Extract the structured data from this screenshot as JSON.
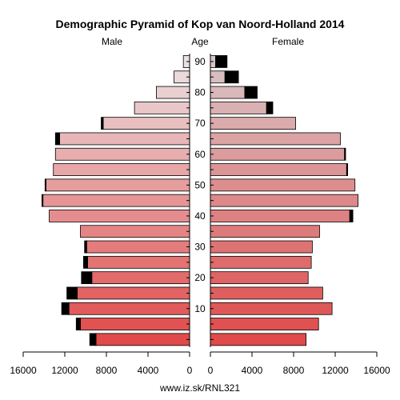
{
  "chart_data": {
    "type": "bar",
    "title": "Demographic Pyramid of Kop van Noord-Holland 2014",
    "left_label": "Male",
    "center_label": "Age",
    "right_label": "Female",
    "footer": "www.iz.sk/RNL321",
    "x_ticks": [
      "16000",
      "12000",
      "8000",
      "4000",
      "0",
      "0",
      "4000",
      "8000",
      "12000",
      "16000"
    ],
    "age_ticks": [
      "90",
      "80",
      "70",
      "60",
      "50",
      "40",
      "30",
      "20",
      "10"
    ],
    "xlim": [
      0,
      16000
    ],
    "age_groups": [
      "0-4",
      "5-9",
      "10-14",
      "15-19",
      "20-24",
      "25-29",
      "30-34",
      "35-39",
      "40-44",
      "45-49",
      "50-54",
      "55-59",
      "60-64",
      "65-69",
      "70-74",
      "75-79",
      "80-84",
      "85-89",
      "90+"
    ],
    "series": [
      {
        "name": "Male",
        "values": [
          9000,
          10500,
          11600,
          10800,
          9400,
          9800,
          9900,
          10500,
          13500,
          14100,
          13800,
          13100,
          12900,
          12500,
          8300,
          5300,
          3200,
          1500,
          600
        ],
        "excess": [
          600,
          400,
          700,
          1000,
          1000,
          400,
          200,
          0,
          0,
          100,
          100,
          0,
          0,
          400,
          200,
          0,
          0,
          0,
          0
        ]
      },
      {
        "name": "Female",
        "values": [
          9200,
          10400,
          11700,
          10800,
          9400,
          9700,
          9800,
          10500,
          13400,
          14200,
          13900,
          13100,
          12900,
          12500,
          8200,
          5400,
          3300,
          1400,
          500
        ],
        "excess": [
          0,
          0,
          0,
          0,
          0,
          0,
          0,
          0,
          300,
          0,
          0,
          100,
          100,
          0,
          0,
          600,
          1200,
          1300,
          1100
        ]
      }
    ],
    "colors": {
      "young": "#e04a4a",
      "old": "#ebe0e2",
      "female_old": "#d9c5c7",
      "excess": "#000000",
      "axis": "#000000"
    }
  }
}
